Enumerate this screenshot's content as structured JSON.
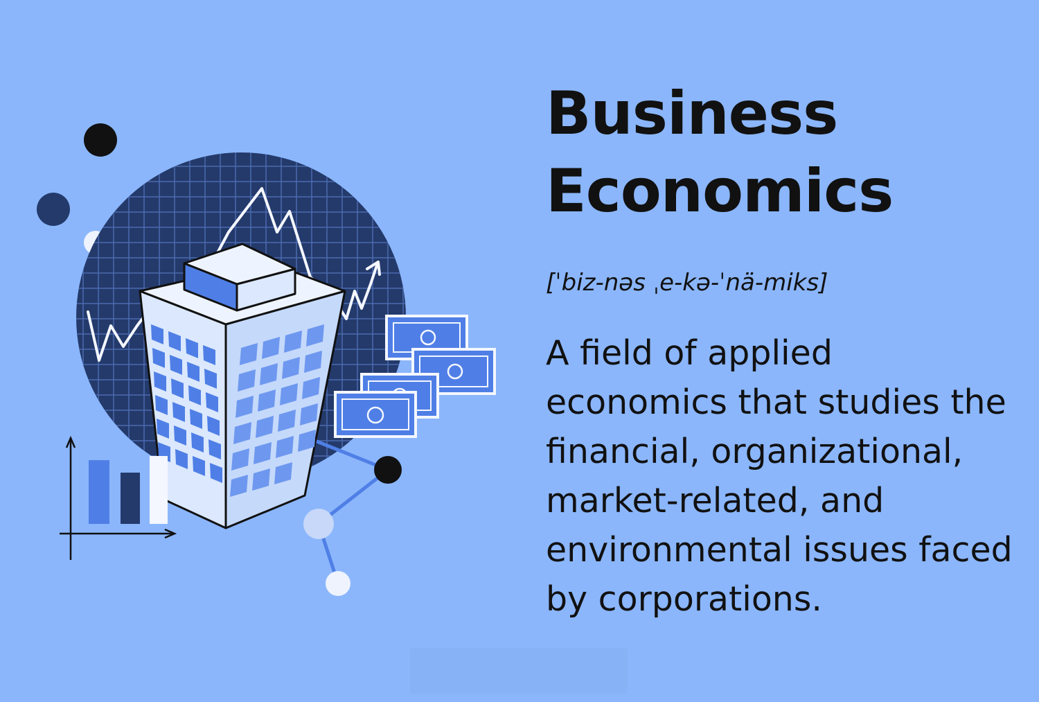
{
  "title": {
    "line1": "Business",
    "line2": "Economics"
  },
  "pronunciation": "[ˈbiz-nəs ˌe-kə-ˈnä-miks]",
  "definition": "A field of applied economics that studies the financial, organizational, market-related, and environmental issues faced by corporations.",
  "colors": {
    "background": "#8bb6fb",
    "navy": "#243a6b",
    "grid": "#4b6bb0",
    "building_light": "#dbe8fd",
    "building_blue": "#4f7fe6",
    "text": "#111111"
  },
  "icons": [
    "office-building-icon",
    "money-bills-icon",
    "bar-chart-icon",
    "line-chart-icon",
    "network-dots-icon"
  ]
}
